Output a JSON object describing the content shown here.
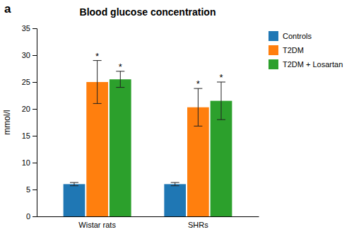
{
  "chart_data": {
    "type": "bar",
    "title": "Blood glucose concentration",
    "annotations": [
      "a"
    ],
    "ylabel": "mmol/l",
    "categories": [
      "Wistar rats",
      "SHRs"
    ],
    "series": [
      {
        "name": "Controls",
        "values": [
          6.0,
          6.0
        ],
        "errors": [
          0.3,
          0.3
        ],
        "annotations": [
          null,
          null
        ]
      },
      {
        "name": "T2DM",
        "values": [
          25.0,
          20.3
        ],
        "errors": [
          4.0,
          3.5
        ],
        "annotations": [
          "*",
          "*"
        ]
      },
      {
        "name": "T2DM + Losartan",
        "values": [
          25.5,
          21.5
        ],
        "errors": [
          1.5,
          3.5
        ],
        "annotations": [
          "*",
          "*"
        ]
      }
    ],
    "ylim": [
      0,
      35
    ],
    "yticks": [
      0,
      5,
      10,
      15,
      20,
      25,
      30,
      35
    ],
    "grid": false,
    "legend": "upper right"
  }
}
